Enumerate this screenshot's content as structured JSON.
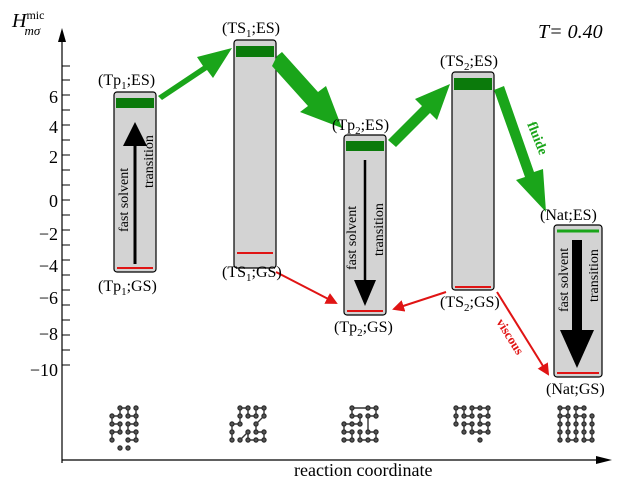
{
  "title": {
    "symbol": "H",
    "superscript": "mic",
    "subscript": "mσ"
  },
  "temperature": "T= 0.40",
  "y_ticks": [
    "6",
    "4",
    "2",
    "0",
    "−2",
    "−4",
    "−6",
    "−8",
    "−10"
  ],
  "x_label": "reaction coordinate",
  "states": {
    "tp1_es": {
      "pre": "(Tp",
      "sub": "1",
      "post": ";ES)"
    },
    "tp1_gs": {
      "pre": "(Tp",
      "sub": "1",
      "post": ";GS)"
    },
    "ts1_es": {
      "pre": "(TS",
      "sub": "1",
      "post": ";ES)"
    },
    "ts1_gs": {
      "pre": "(TS",
      "sub": "1",
      "post": ";GS)"
    },
    "tp2_es": {
      "pre": "(Tp",
      "sub": "2",
      "post": ";ES)"
    },
    "tp2_gs": {
      "pre": "(Tp",
      "sub": "2",
      "post": ";GS)"
    },
    "ts2_es": {
      "pre": "(TS",
      "sub": "2",
      "post": ";ES)"
    },
    "ts2_gs": {
      "pre": "(TS",
      "sub": "2",
      "post": ";GS)"
    },
    "nat_es": {
      "pre": "(Nat;ES)",
      "sub": "",
      "post": ""
    },
    "nat_gs": {
      "pre": "(Nat;GS)",
      "sub": "",
      "post": ""
    }
  },
  "transition_text": {
    "line1": "fast solvent",
    "line2": "transition"
  },
  "path_labels": {
    "fluide": "fluide",
    "viscous": "viscous"
  },
  "colors": {
    "excited": "#1aa51a",
    "ground": "#e01414",
    "box_fill": "#d3d3d3",
    "dark_green": "#0b7a0b"
  }
}
